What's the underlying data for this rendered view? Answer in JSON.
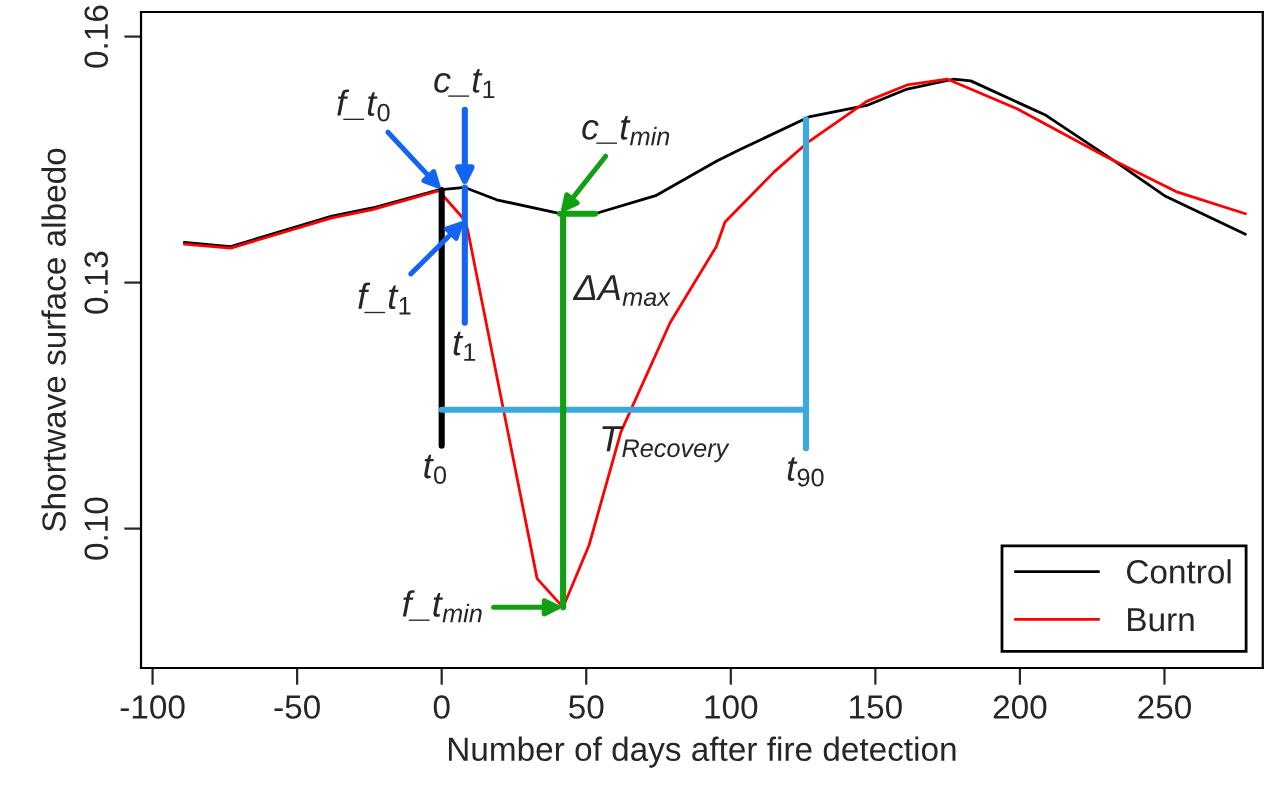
{
  "chart_data": {
    "type": "line",
    "xlabel": "Number of days after fire detection",
    "ylabel": "Shortwave surface albedo",
    "xlim": [
      -104,
      284
    ],
    "ylim": [
      0.083,
      0.163
    ],
    "xticks": [
      -100,
      -50,
      0,
      50,
      100,
      150,
      200,
      250
    ],
    "yticks": [
      {
        "value": 0.1,
        "label": "0.10"
      },
      {
        "value": 0.13,
        "label": "0.13"
      },
      {
        "value": 0.16,
        "label": "0.16"
      }
    ],
    "grid": false,
    "legend": "bottom right",
    "marker": "none",
    "line_style": "solid",
    "series": [
      {
        "name": "Control",
        "color": "#000000",
        "x": [
          -89,
          -73,
          -38,
          -24,
          -1,
          8,
          19,
          41,
          53,
          74,
          95,
          103,
          127,
          147,
          161,
          177,
          183,
          209,
          232,
          250,
          278
        ],
        "values": [
          0.1349,
          0.1344,
          0.1381,
          0.1391,
          0.1413,
          0.1416,
          0.1401,
          0.1384,
          0.1384,
          0.1406,
          0.1448,
          0.1462,
          0.1502,
          0.1516,
          0.1536,
          0.1548,
          0.1546,
          0.1504,
          0.145,
          0.1406,
          0.1359
        ]
      },
      {
        "name": "Burn",
        "color": "#ff0000",
        "x": [
          -89,
          -73,
          -38,
          -24,
          -1,
          8,
          9,
          33,
          42,
          51,
          62,
          79,
          95,
          98,
          115,
          127,
          147,
          161,
          175,
          199,
          229,
          254,
          278
        ],
        "values": [
          0.1347,
          0.1342,
          0.1379,
          0.1389,
          0.1412,
          0.1376,
          0.1364,
          0.0939,
          0.0904,
          0.098,
          0.1118,
          0.1251,
          0.1344,
          0.1374,
          0.1435,
          0.1472,
          0.1521,
          0.1541,
          0.1548,
          0.1512,
          0.1455,
          0.1411,
          0.1384
        ]
      },
      {
        "color": "#000000",
        "x": [
          0,
          0
        ],
        "values": [
          0.1413,
          0.1101
        ]
      },
      {
        "color": "#1464f4",
        "x": [
          8,
          8
        ],
        "values": [
          0.1416,
          0.1251
        ]
      },
      {
        "color": "#3ba9dc",
        "x": [
          126,
          126
        ],
        "values": [
          0.1499,
          0.1098
        ]
      },
      {
        "color": "#3ba9dc",
        "x": [
          0,
          126
        ],
        "values": [
          0.1145,
          0.1145
        ]
      },
      {
        "color": "#11a011",
        "x": [
          42,
          42
        ],
        "values": [
          0.0904,
          0.1384
        ]
      },
      {
        "color": "#11a011",
        "x": [
          41,
          53
        ],
        "values": [
          0.1384,
          0.1384
        ]
      }
    ],
    "annotations": [
      {
        "text": "f_t$_{0}$",
        "x": 0,
        "y": 0.1413
      },
      {
        "text": "c_t$_{1}$",
        "x": 8,
        "y": 0.1416
      },
      {
        "text": "f_t$_{1}$",
        "x": 8,
        "y": 0.1376
      },
      {
        "text": "t$_{1}$",
        "x": 8,
        "y": 0.1251
      },
      {
        "text": "c_t$_{min}$",
        "x": 41,
        "y": 0.1384
      },
      {
        "text": "ΔA$_{max}$",
        "x": 42,
        "y": 0.129
      },
      {
        "text": "T$_{Recovery}$",
        "x": 53,
        "y": 0.1145
      },
      {
        "text": "t$_{0}$",
        "x": 0,
        "y": 0.1101
      },
      {
        "text": "t$_{90}$",
        "x": 126,
        "y": 0.1098
      },
      {
        "text": "f_t$_{min}$",
        "x": 42,
        "y": 0.0904
      }
    ]
  }
}
